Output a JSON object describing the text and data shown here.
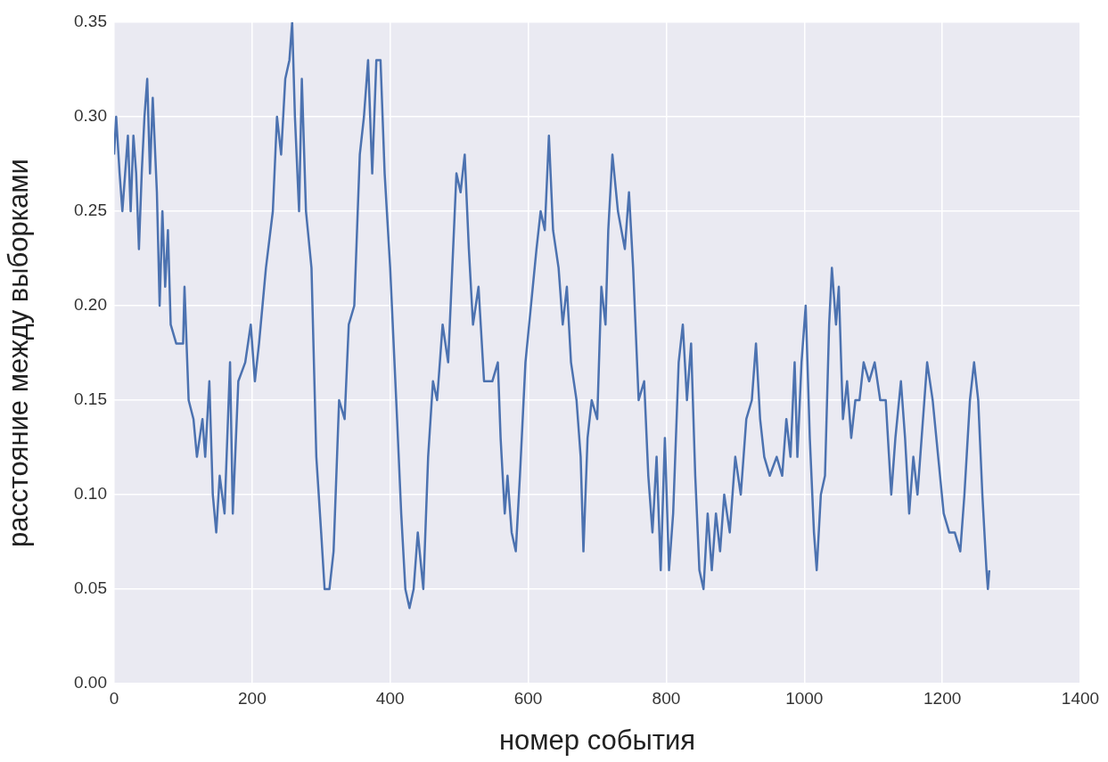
{
  "chart_data": {
    "type": "line",
    "xlabel": "номер события",
    "ylabel": "расстояние между выборками",
    "grid": true,
    "legend": false,
    "marker": "none",
    "line_style": "solid",
    "xlim": [
      0,
      1400
    ],
    "xticks": [
      0,
      200,
      400,
      600,
      800,
      1000,
      1200,
      1400
    ],
    "ylim": [
      0,
      0.35
    ],
    "yticks": [
      {
        "value": 0,
        "label": "0.00"
      },
      {
        "value": 0.05,
        "label": "0.05"
      },
      {
        "value": 0.1,
        "label": "0.10"
      },
      {
        "value": 0.15,
        "label": "0.15"
      },
      {
        "value": 0.2,
        "label": "0.20"
      },
      {
        "value": 0.25,
        "label": "0.25"
      },
      {
        "value": 0.3,
        "label": "0.30"
      },
      {
        "value": 0.35,
        "label": "0.35"
      }
    ],
    "x": [
      0,
      3,
      8,
      12,
      16,
      20,
      24,
      28,
      32,
      36,
      40,
      44,
      48,
      52,
      56,
      62,
      66,
      70,
      74,
      78,
      82,
      90,
      100,
      102,
      108,
      115,
      120,
      128,
      132,
      138,
      143,
      148,
      153,
      160,
      168,
      172,
      180,
      190,
      198,
      204,
      210,
      220,
      230,
      236,
      242,
      248,
      254,
      258,
      262,
      268,
      272,
      278,
      286,
      293,
      300,
      305,
      312,
      318,
      326,
      334,
      340,
      348,
      356,
      362,
      368,
      374,
      380,
      386,
      392,
      400,
      410,
      416,
      422,
      428,
      434,
      440,
      448,
      455,
      462,
      468,
      476,
      484,
      490,
      496,
      502,
      508,
      514,
      520,
      528,
      536,
      548,
      556,
      560,
      566,
      570,
      576,
      582,
      588,
      596,
      604,
      612,
      618,
      624,
      630,
      636,
      644,
      650,
      656,
      662,
      670,
      676,
      680,
      686,
      692,
      700,
      706,
      712,
      716,
      722,
      730,
      740,
      746,
      752,
      760,
      768,
      774,
      780,
      786,
      792,
      798,
      804,
      810,
      818,
      824,
      830,
      836,
      842,
      848,
      854,
      860,
      866,
      872,
      878,
      884,
      892,
      900,
      908,
      916,
      924,
      930,
      936,
      942,
      950,
      960,
      968,
      974,
      980,
      986,
      990,
      996,
      1002,
      1008,
      1014,
      1018,
      1024,
      1030,
      1036,
      1040,
      1046,
      1050,
      1056,
      1062,
      1068,
      1074,
      1080,
      1086,
      1094,
      1102,
      1110,
      1118,
      1126,
      1132,
      1140,
      1146,
      1152,
      1158,
      1164,
      1170,
      1178,
      1186,
      1194,
      1202,
      1210,
      1218,
      1226,
      1232,
      1240,
      1246,
      1252,
      1258,
      1264,
      1266,
      1268
    ],
    "series": [
      {
        "color": "#4c72b0",
        "values": [
          0.28,
          0.3,
          0.27,
          0.25,
          0.27,
          0.29,
          0.25,
          0.29,
          0.27,
          0.23,
          0.27,
          0.3,
          0.32,
          0.27,
          0.31,
          0.26,
          0.2,
          0.25,
          0.21,
          0.24,
          0.19,
          0.18,
          0.18,
          0.21,
          0.15,
          0.14,
          0.12,
          0.14,
          0.12,
          0.16,
          0.1,
          0.08,
          0.11,
          0.09,
          0.17,
          0.09,
          0.16,
          0.17,
          0.19,
          0.16,
          0.18,
          0.22,
          0.25,
          0.3,
          0.28,
          0.32,
          0.33,
          0.35,
          0.3,
          0.25,
          0.32,
          0.25,
          0.22,
          0.12,
          0.08,
          0.05,
          0.05,
          0.07,
          0.15,
          0.14,
          0.19,
          0.2,
          0.28,
          0.3,
          0.33,
          0.27,
          0.33,
          0.33,
          0.27,
          0.22,
          0.14,
          0.09,
          0.05,
          0.04,
          0.05,
          0.08,
          0.05,
          0.12,
          0.16,
          0.15,
          0.19,
          0.17,
          0.22,
          0.27,
          0.26,
          0.28,
          0.23,
          0.19,
          0.21,
          0.16,
          0.16,
          0.17,
          0.13,
          0.09,
          0.11,
          0.08,
          0.07,
          0.11,
          0.17,
          0.2,
          0.23,
          0.25,
          0.24,
          0.29,
          0.24,
          0.22,
          0.19,
          0.21,
          0.17,
          0.15,
          0.12,
          0.07,
          0.13,
          0.15,
          0.14,
          0.21,
          0.19,
          0.24,
          0.28,
          0.25,
          0.23,
          0.26,
          0.22,
          0.15,
          0.16,
          0.11,
          0.08,
          0.12,
          0.06,
          0.13,
          0.06,
          0.09,
          0.17,
          0.19,
          0.15,
          0.18,
          0.11,
          0.06,
          0.05,
          0.09,
          0.06,
          0.09,
          0.07,
          0.1,
          0.08,
          0.12,
          0.1,
          0.14,
          0.15,
          0.18,
          0.14,
          0.12,
          0.11,
          0.12,
          0.11,
          0.14,
          0.12,
          0.17,
          0.12,
          0.17,
          0.2,
          0.13,
          0.08,
          0.06,
          0.1,
          0.11,
          0.19,
          0.22,
          0.19,
          0.21,
          0.14,
          0.16,
          0.13,
          0.15,
          0.15,
          0.17,
          0.16,
          0.17,
          0.15,
          0.15,
          0.1,
          0.13,
          0.16,
          0.13,
          0.09,
          0.12,
          0.1,
          0.13,
          0.17,
          0.15,
          0.12,
          0.09,
          0.08,
          0.08,
          0.07,
          0.1,
          0.15,
          0.17,
          0.15,
          0.1,
          0.06,
          0.05,
          0.06
        ]
      }
    ]
  }
}
